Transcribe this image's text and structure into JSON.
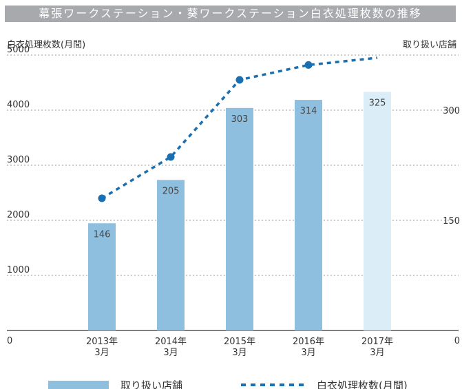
{
  "chart_data": {
    "type": "bar",
    "title": "幕張ワークステーション・葵ワークステーション白衣処理枚数の推移",
    "left_axis_title": "白衣処理枚数(月間)",
    "right_axis_title": "取り扱い店舗",
    "categories": [
      {
        "year": "2013年",
        "month": "3月"
      },
      {
        "year": "2014年",
        "month": "3月"
      },
      {
        "year": "2015年",
        "month": "3月"
      },
      {
        "year": "2016年",
        "month": "3月"
      },
      {
        "year": "2017年",
        "month": "3月"
      }
    ],
    "left_axis": {
      "min": 0,
      "max": 5000,
      "ticks": [
        0,
        1000,
        2000,
        3000,
        4000,
        5000
      ]
    },
    "right_axis": {
      "min": 0,
      "max": 375,
      "ticks": [
        0,
        150,
        300
      ]
    },
    "grid": true,
    "bars": {
      "name": "取り扱い店舗",
      "axis": "right",
      "values": [
        146,
        205,
        303,
        314,
        325
      ],
      "labels": [
        "146",
        "205",
        "303",
        "314",
        "325"
      ],
      "color": "#8fbfdf",
      "highlight_color": "#dbeef8",
      "highlight_index": 4
    },
    "line": {
      "name": "白衣処理枚数(月間)",
      "axis": "left",
      "values": [
        2400,
        3150,
        4550,
        4820,
        4950
      ],
      "marker_count": 4,
      "color": "#1a6fb0"
    },
    "legend": {
      "placement": "bottom",
      "bar_label": "取り扱い店舗",
      "line_label": "白衣処理枚数(月間)"
    }
  }
}
